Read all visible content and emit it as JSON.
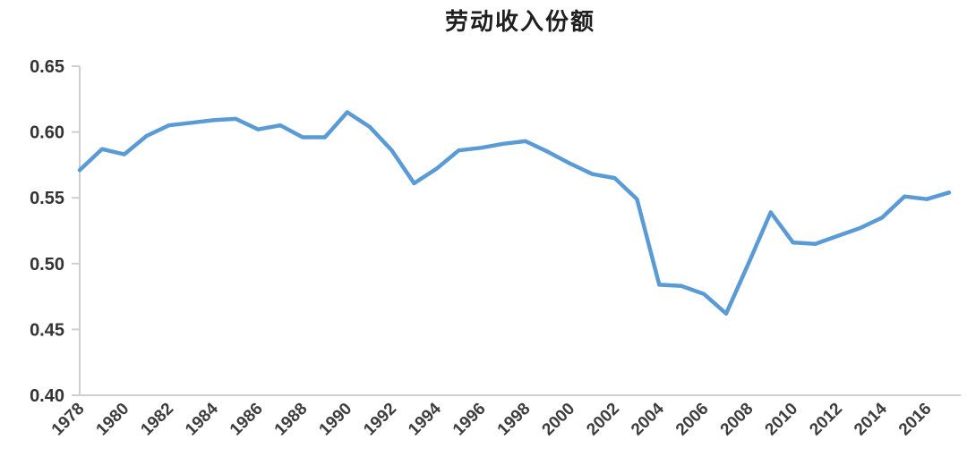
{
  "title": "劳动收入份额",
  "chart_data": {
    "type": "line",
    "title": "劳动收入份额",
    "series_name": "劳动收入份额",
    "x": [
      1978,
      1979,
      1980,
      1981,
      1982,
      1983,
      1984,
      1985,
      1986,
      1987,
      1988,
      1989,
      1990,
      1991,
      1992,
      1993,
      1994,
      1995,
      1996,
      1997,
      1998,
      1999,
      2000,
      2001,
      2002,
      2003,
      2004,
      2005,
      2006,
      2007,
      2008,
      2009,
      2010,
      2011,
      2012,
      2013,
      2014,
      2015,
      2016,
      2017
    ],
    "values": [
      0.571,
      0.587,
      0.583,
      0.597,
      0.605,
      0.607,
      0.609,
      0.61,
      0.602,
      0.605,
      0.596,
      0.596,
      0.615,
      0.604,
      0.586,
      0.561,
      0.572,
      0.586,
      0.588,
      0.591,
      0.593,
      0.585,
      0.576,
      0.568,
      0.565,
      0.549,
      0.484,
      0.483,
      0.477,
      0.462,
      0.5,
      0.539,
      0.516,
      0.515,
      0.521,
      0.527,
      0.535,
      0.551,
      0.549,
      0.554
    ],
    "xlabel": "",
    "ylabel": "",
    "ylim": [
      0.4,
      0.65
    ],
    "ytick_labels": [
      "0.40",
      "0.45",
      "0.50",
      "0.55",
      "0.60",
      "0.65"
    ],
    "xtick_labels": [
      "1978",
      "1980",
      "1982",
      "1984",
      "1986",
      "1988",
      "1990",
      "1992",
      "1994",
      "1996",
      "1998",
      "2000",
      "2002",
      "2004",
      "2006",
      "2008",
      "2010",
      "2012",
      "2014",
      "2016"
    ],
    "grid": false,
    "legend": "none",
    "line_color": "#5B9BD5",
    "axis_color": "#CFCFCF",
    "label_color": "#3d3d3d"
  }
}
